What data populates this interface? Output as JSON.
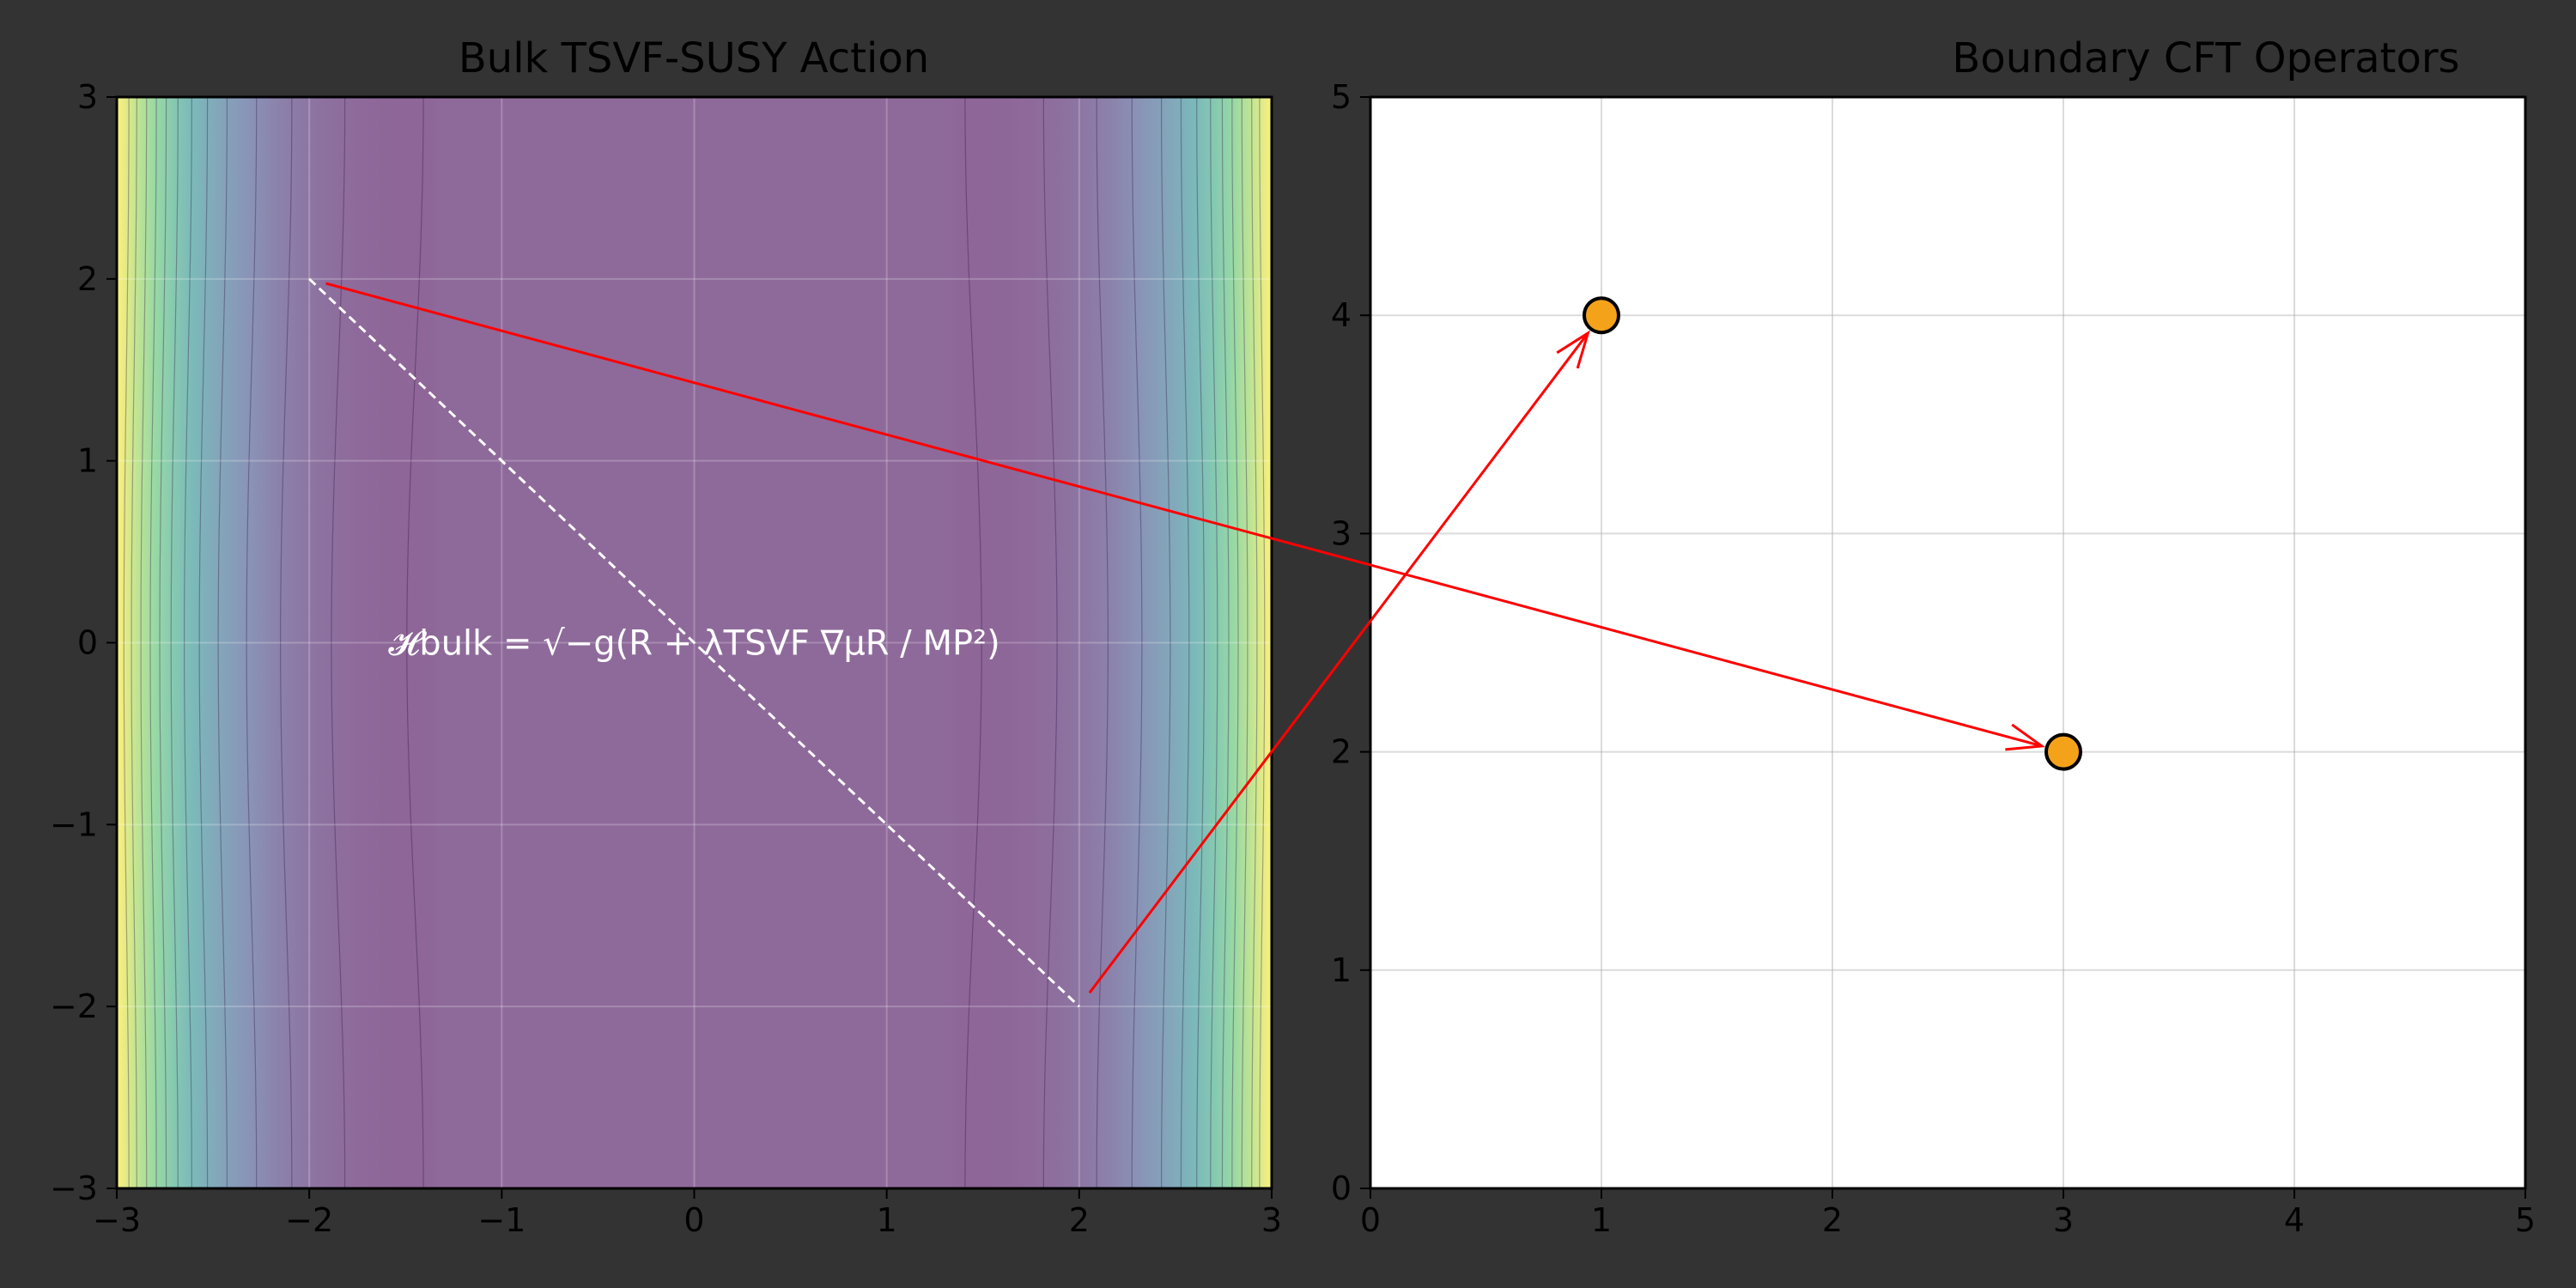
{
  "figure": {
    "background_color": "#333333"
  },
  "chart_data": [
    {
      "type": "heatmap",
      "title": "Bulk TSVF-SUSY Action",
      "xlabel": "",
      "ylabel": "",
      "xlim": [
        -3,
        3
      ],
      "ylim": [
        -3,
        3
      ],
      "x_ticks": [
        -3,
        -2,
        -1,
        0,
        1,
        2,
        3
      ],
      "y_ticks": [
        -3,
        -2,
        -1,
        0,
        1,
        2,
        3
      ],
      "x_tick_labels": [
        "−3",
        "−2",
        "−1",
        "0",
        "1",
        "2",
        "3"
      ],
      "y_tick_labels": [
        "−3",
        "−2",
        "−1",
        "0",
        "1",
        "2",
        "3"
      ],
      "grid": true,
      "colormap": "viridis",
      "colormap_stops": [
        "#440154",
        "#3b528b",
        "#21918c",
        "#5ec962",
        "#fde725"
      ],
      "contour_overlay_color": "#ffffff",
      "contour_overlay_opacity": 0.4,
      "field": "rises steeply toward x = ±3, nearly flat in |x| < 1.5, slight waviness in y",
      "annotation": {
        "text": "𝓗bulk = √−g(R + λTSVF ∇μR / MP²)",
        "x": 0,
        "y": 0,
        "color": "#ffffff"
      },
      "geodesic": {
        "style": "dashed",
        "color": "#ffffff",
        "from": [
          -2,
          2
        ],
        "to": [
          2,
          -2
        ]
      }
    },
    {
      "type": "scatter",
      "title": "Boundary CFT Operators",
      "xlabel": "",
      "ylabel": "",
      "xlim": [
        0,
        5
      ],
      "ylim": [
        0,
        5
      ],
      "x_ticks": [
        0,
        1,
        2,
        3,
        4,
        5
      ],
      "y_ticks": [
        0,
        1,
        2,
        3,
        4,
        5
      ],
      "x_tick_labels": [
        "0",
        "1",
        "2",
        "3",
        "4",
        "5"
      ],
      "y_tick_labels": [
        "0",
        "1",
        "2",
        "3",
        "4",
        "5"
      ],
      "grid": true,
      "points": [
        {
          "x": 1,
          "y": 4
        },
        {
          "x": 3,
          "y": 2
        }
      ],
      "marker_color": "#f5a21b",
      "marker_edge_color": "#000000"
    }
  ],
  "connections": {
    "color": "#ff0000",
    "arrows": [
      {
        "from_panel": 0,
        "from": [
          -2,
          2
        ],
        "to_panel": 1,
        "to": [
          3,
          2
        ]
      },
      {
        "from_panel": 0,
        "from": [
          2,
          -2
        ],
        "to_panel": 1,
        "to": [
          1,
          4
        ]
      }
    ]
  }
}
